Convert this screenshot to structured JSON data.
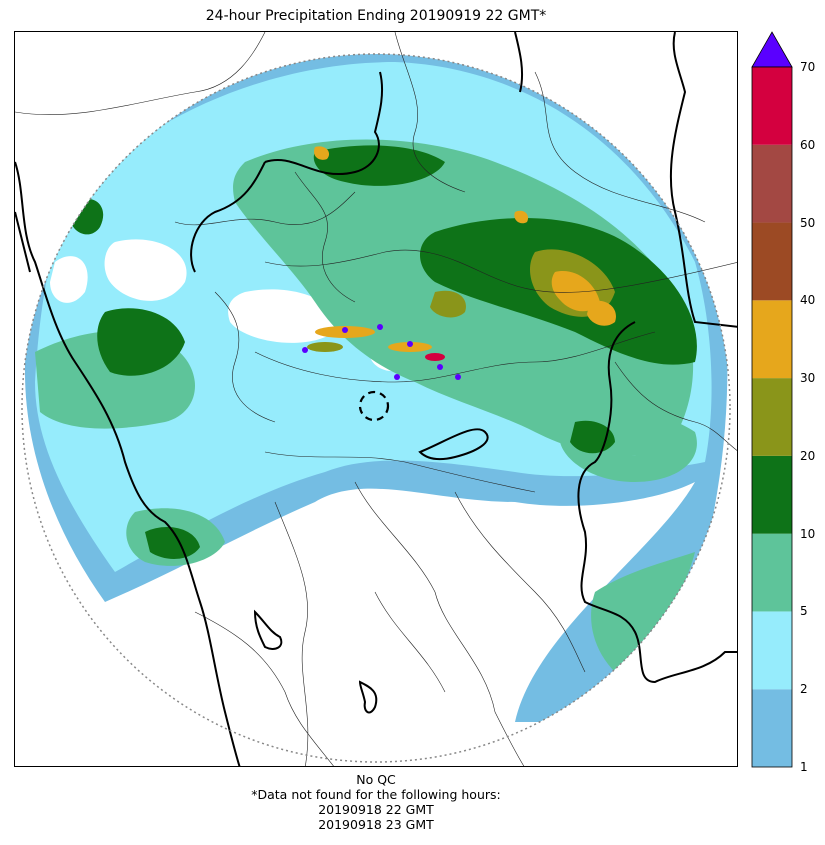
{
  "title": "24-hour Precipitation Ending 20190919 22 GMT*",
  "colorbar": {
    "ticks": [
      "1",
      "2",
      "5",
      "10",
      "20",
      "30",
      "40",
      "50",
      "60",
      "70"
    ],
    "bins": [
      {
        "from": 1,
        "to": 2,
        "color": "#74bde3"
      },
      {
        "from": 2,
        "to": 5,
        "color": "#96ecfc"
      },
      {
        "from": 5,
        "to": 10,
        "color": "#5ec49a"
      },
      {
        "from": 10,
        "to": 20,
        "color": "#0e7318"
      },
      {
        "from": 20,
        "to": 30,
        "color": "#8a951a"
      },
      {
        "from": 30,
        "to": 40,
        "color": "#e6a71c"
      },
      {
        "from": 40,
        "to": 50,
        "color": "#9c4a24"
      },
      {
        "from": 50,
        "to": 60,
        "color": "#a34843"
      },
      {
        "from": 60,
        "to": 70,
        "color": "#d4003f"
      }
    ],
    "overflow_color": "#5a00ff"
  },
  "footer": {
    "line1": "No QC",
    "line2": "*Data not found for the following hours:",
    "line3": "20190918 22 GMT",
    "line4": "20190918 23 GMT"
  }
}
